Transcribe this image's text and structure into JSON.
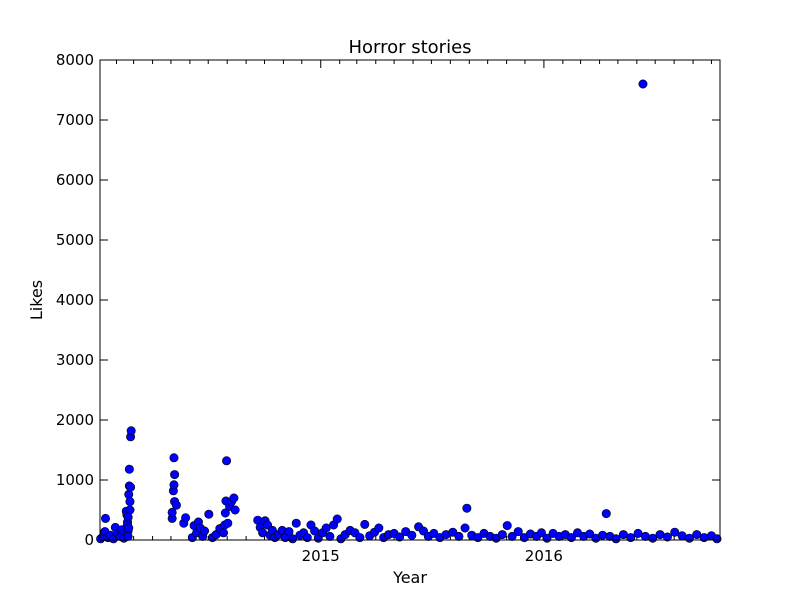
{
  "chart_data": {
    "type": "scatter",
    "title": "Horror stories",
    "xlabel": "Year",
    "ylabel": "Likes",
    "xlim": [
      "2014-01-05",
      "2016-10-15"
    ],
    "ylim": [
      0,
      8000
    ],
    "yticks": [
      0,
      1000,
      2000,
      3000,
      4000,
      5000,
      6000,
      7000,
      8000
    ],
    "xticks": [
      {
        "value": "2015-01-01",
        "label": "2015"
      },
      {
        "value": "2016-01-01",
        "label": "2016"
      }
    ],
    "grid": false,
    "marker_color": "#0000ff",
    "points": [
      {
        "x": "2014-01-06",
        "y": 20
      },
      {
        "x": "2014-01-10",
        "y": 60
      },
      {
        "x": "2014-01-13",
        "y": 140
      },
      {
        "x": "2014-01-14",
        "y": 360
      },
      {
        "x": "2014-01-18",
        "y": 40
      },
      {
        "x": "2014-01-22",
        "y": 80
      },
      {
        "x": "2014-01-27",
        "y": 20
      },
      {
        "x": "2014-01-30",
        "y": 210
      },
      {
        "x": "2014-02-03",
        "y": 100
      },
      {
        "x": "2014-02-07",
        "y": 60
      },
      {
        "x": "2014-02-10",
        "y": 170
      },
      {
        "x": "2014-02-13",
        "y": 30
      },
      {
        "x": "2014-02-17",
        "y": 480
      },
      {
        "x": "2014-02-18",
        "y": 420
      },
      {
        "x": "2014-02-19",
        "y": 300
      },
      {
        "x": "2014-02-20",
        "y": 150
      },
      {
        "x": "2014-02-21",
        "y": 760
      },
      {
        "x": "2014-02-22",
        "y": 900
      },
      {
        "x": "2014-02-22",
        "y": 1180
      },
      {
        "x": "2014-02-23",
        "y": 640
      },
      {
        "x": "2014-02-23",
        "y": 500
      },
      {
        "x": "2014-02-24",
        "y": 1720
      },
      {
        "x": "2014-02-25",
        "y": 1820
      },
      {
        "x": "2014-02-24",
        "y": 880
      },
      {
        "x": "2014-02-20",
        "y": 380
      },
      {
        "x": "2014-02-19",
        "y": 250
      },
      {
        "x": "2014-02-21",
        "y": 200
      },
      {
        "x": "2014-02-20",
        "y": 60
      },
      {
        "x": "2014-05-03",
        "y": 360
      },
      {
        "x": "2014-05-03",
        "y": 460
      },
      {
        "x": "2014-05-05",
        "y": 820
      },
      {
        "x": "2014-05-06",
        "y": 1370
      },
      {
        "x": "2014-05-06",
        "y": 920
      },
      {
        "x": "2014-05-07",
        "y": 1090
      },
      {
        "x": "2014-05-07",
        "y": 640
      },
      {
        "x": "2014-05-10",
        "y": 580
      },
      {
        "x": "2014-05-22",
        "y": 280
      },
      {
        "x": "2014-05-25",
        "y": 370
      },
      {
        "x": "2014-06-05",
        "y": 40
      },
      {
        "x": "2014-06-08",
        "y": 240
      },
      {
        "x": "2014-06-12",
        "y": 120
      },
      {
        "x": "2014-06-15",
        "y": 300
      },
      {
        "x": "2014-06-18",
        "y": 200
      },
      {
        "x": "2014-06-22",
        "y": 60
      },
      {
        "x": "2014-06-25",
        "y": 150
      },
      {
        "x": "2014-07-02",
        "y": 430
      },
      {
        "x": "2014-07-08",
        "y": 40
      },
      {
        "x": "2014-07-14",
        "y": 90
      },
      {
        "x": "2014-07-20",
        "y": 190
      },
      {
        "x": "2014-07-26",
        "y": 120
      },
      {
        "x": "2014-07-28",
        "y": 250
      },
      {
        "x": "2014-07-29",
        "y": 450
      },
      {
        "x": "2014-07-30",
        "y": 650
      },
      {
        "x": "2014-07-31",
        "y": 1320
      },
      {
        "x": "2014-08-02",
        "y": 280
      },
      {
        "x": "2014-08-05",
        "y": 560
      },
      {
        "x": "2014-08-08",
        "y": 640
      },
      {
        "x": "2014-08-12",
        "y": 700
      },
      {
        "x": "2014-08-14",
        "y": 500
      },
      {
        "x": "2014-09-20",
        "y": 330
      },
      {
        "x": "2014-09-24",
        "y": 210
      },
      {
        "x": "2014-09-28",
        "y": 120
      },
      {
        "x": "2014-10-02",
        "y": 320
      },
      {
        "x": "2014-10-06",
        "y": 250
      },
      {
        "x": "2014-10-10",
        "y": 80
      },
      {
        "x": "2014-10-14",
        "y": 160
      },
      {
        "x": "2014-10-18",
        "y": 40
      },
      {
        "x": "2014-10-24",
        "y": 90
      },
      {
        "x": "2014-10-30",
        "y": 160
      },
      {
        "x": "2014-11-04",
        "y": 40
      },
      {
        "x": "2014-11-10",
        "y": 140
      },
      {
        "x": "2014-11-16",
        "y": 20
      },
      {
        "x": "2014-11-22",
        "y": 280
      },
      {
        "x": "2014-11-28",
        "y": 80
      },
      {
        "x": "2014-12-04",
        "y": 120
      },
      {
        "x": "2014-12-10",
        "y": 40
      },
      {
        "x": "2014-12-16",
        "y": 250
      },
      {
        "x": "2014-12-22",
        "y": 150
      },
      {
        "x": "2014-12-28",
        "y": 30
      },
      {
        "x": "2015-01-04",
        "y": 120
      },
      {
        "x": "2015-01-10",
        "y": 200
      },
      {
        "x": "2015-01-16",
        "y": 60
      },
      {
        "x": "2015-01-22",
        "y": 250
      },
      {
        "x": "2015-01-28",
        "y": 350
      },
      {
        "x": "2015-02-03",
        "y": 20
      },
      {
        "x": "2015-02-10",
        "y": 90
      },
      {
        "x": "2015-02-18",
        "y": 160
      },
      {
        "x": "2015-02-26",
        "y": 120
      },
      {
        "x": "2015-03-06",
        "y": 40
      },
      {
        "x": "2015-03-14",
        "y": 260
      },
      {
        "x": "2015-03-22",
        "y": 70
      },
      {
        "x": "2015-03-30",
        "y": 130
      },
      {
        "x": "2015-04-06",
        "y": 200
      },
      {
        "x": "2015-04-14",
        "y": 40
      },
      {
        "x": "2015-04-22",
        "y": 90
      },
      {
        "x": "2015-05-01",
        "y": 110
      },
      {
        "x": "2015-05-10",
        "y": 50
      },
      {
        "x": "2015-05-20",
        "y": 140
      },
      {
        "x": "2015-05-30",
        "y": 80
      },
      {
        "x": "2015-06-10",
        "y": 220
      },
      {
        "x": "2015-06-18",
        "y": 150
      },
      {
        "x": "2015-06-26",
        "y": 60
      },
      {
        "x": "2015-07-05",
        "y": 110
      },
      {
        "x": "2015-07-15",
        "y": 40
      },
      {
        "x": "2015-07-25",
        "y": 90
      },
      {
        "x": "2015-08-05",
        "y": 130
      },
      {
        "x": "2015-08-15",
        "y": 60
      },
      {
        "x": "2015-08-25",
        "y": 200
      },
      {
        "x": "2015-08-28",
        "y": 530
      },
      {
        "x": "2015-09-05",
        "y": 80
      },
      {
        "x": "2015-09-15",
        "y": 40
      },
      {
        "x": "2015-09-25",
        "y": 110
      },
      {
        "x": "2015-10-05",
        "y": 60
      },
      {
        "x": "2015-10-15",
        "y": 30
      },
      {
        "x": "2015-10-25",
        "y": 90
      },
      {
        "x": "2015-11-02",
        "y": 240
      },
      {
        "x": "2015-11-10",
        "y": 60
      },
      {
        "x": "2015-11-20",
        "y": 140
      },
      {
        "x": "2015-11-30",
        "y": 40
      },
      {
        "x": "2015-12-10",
        "y": 100
      },
      {
        "x": "2015-12-20",
        "y": 60
      },
      {
        "x": "2015-12-28",
        "y": 120
      },
      {
        "x": "2016-01-06",
        "y": 30
      },
      {
        "x": "2016-01-16",
        "y": 110
      },
      {
        "x": "2016-01-26",
        "y": 60
      },
      {
        "x": "2016-02-05",
        "y": 90
      },
      {
        "x": "2016-02-15",
        "y": 40
      },
      {
        "x": "2016-02-25",
        "y": 120
      },
      {
        "x": "2016-03-06",
        "y": 60
      },
      {
        "x": "2016-03-16",
        "y": 100
      },
      {
        "x": "2016-03-26",
        "y": 30
      },
      {
        "x": "2016-04-06",
        "y": 80
      },
      {
        "x": "2016-04-12",
        "y": 440
      },
      {
        "x": "2016-04-18",
        "y": 60
      },
      {
        "x": "2016-04-28",
        "y": 20
      },
      {
        "x": "2016-05-10",
        "y": 90
      },
      {
        "x": "2016-05-22",
        "y": 40
      },
      {
        "x": "2016-06-03",
        "y": 110
      },
      {
        "x": "2016-06-11",
        "y": 7600
      },
      {
        "x": "2016-06-15",
        "y": 60
      },
      {
        "x": "2016-06-27",
        "y": 30
      },
      {
        "x": "2016-07-09",
        "y": 90
      },
      {
        "x": "2016-07-21",
        "y": 50
      },
      {
        "x": "2016-08-02",
        "y": 130
      },
      {
        "x": "2016-08-14",
        "y": 70
      },
      {
        "x": "2016-08-26",
        "y": 30
      },
      {
        "x": "2016-09-07",
        "y": 90
      },
      {
        "x": "2016-09-19",
        "y": 40
      },
      {
        "x": "2016-10-01",
        "y": 70
      },
      {
        "x": "2016-10-10",
        "y": 20
      }
    ]
  }
}
